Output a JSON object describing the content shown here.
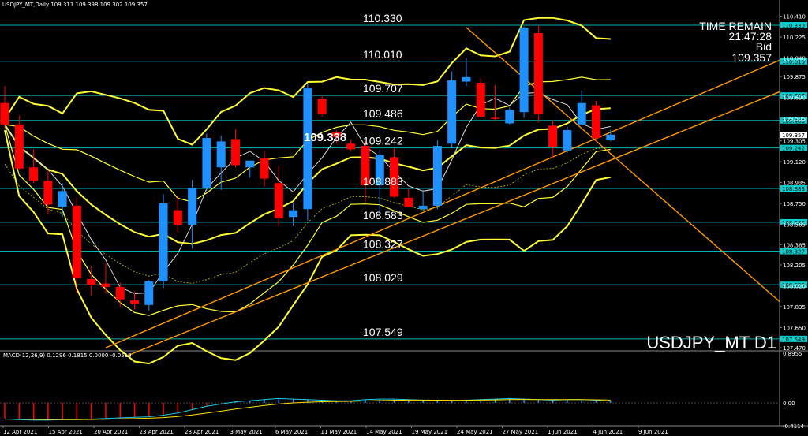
{
  "header": {
    "symbol_info": "USDJPY_MT,Daily  109.311 109.398 109.302 109.357",
    "macd_info": "MACD(12,26,9) 0.1296 0.1815 0.0000 -0.0519"
  },
  "overlay": {
    "time_remain_label": "TIME REMAIN",
    "time_remain": "21:47:28",
    "bid_label": "Bid",
    "bid": "109.357",
    "watermark": "USDJPY_MT D1",
    "marker_price": "109.338"
  },
  "chart_data": {
    "type": "candlestick",
    "price_axis": [
      "110.410",
      "110.225",
      "110.040",
      "109.875",
      "109.690",
      "109.505",
      "109.305",
      "109.120",
      "108.935",
      "108.750",
      "108.565",
      "108.385",
      "108.205",
      "108.020",
      "107.835",
      "107.650",
      "107.470"
    ],
    "ylim": [
      107.45,
      110.47
    ],
    "macd_axis": [
      "0.8955",
      "0.00",
      "-0.4114"
    ],
    "macd_ylim": [
      -0.4114,
      0.8955
    ],
    "dates": [
      "12 Apr 2021",
      "15 Apr 2021",
      "20 Apr 2021",
      "23 Apr 2021",
      "28 Apr 2021",
      "3 May 2021",
      "6 May 2021",
      "11 May 2021",
      "14 May 2021",
      "19 May 2021",
      "24 May 2021",
      "27 May 2021",
      "1 Jun 2021",
      "4 Jun 2021",
      "9 Jun 2021"
    ],
    "horizontal_levels": [
      {
        "value": 110.33,
        "label": "110.330",
        "tag": "110.330"
      },
      {
        "value": 110.01,
        "label": "110.010",
        "tag": "110.010"
      },
      {
        "value": 109.707,
        "label": "109.707",
        "tag": "109.707"
      },
      {
        "value": 109.486,
        "label": "109.486",
        "tag": "109.486"
      },
      {
        "value": 109.242,
        "label": "109.242",
        "tag": "109.242"
      },
      {
        "value": 108.883,
        "label": "108.883",
        "tag": "108.883"
      },
      {
        "value": 108.583,
        "label": "108.583",
        "tag": "108.583"
      },
      {
        "value": 108.327,
        "label": "108.327",
        "tag": "108.327"
      },
      {
        "value": 108.029,
        "label": "108.029",
        "tag": "108.029"
      },
      {
        "value": 107.549,
        "label": "107.549",
        "tag": "107.549"
      }
    ],
    "current_price_tag": "109.357",
    "candles": [
      {
        "o": 109.64,
        "h": 109.79,
        "l": 109.42,
        "c": 109.45
      },
      {
        "o": 109.45,
        "h": 109.53,
        "l": 109.05,
        "c": 109.06
      },
      {
        "o": 109.07,
        "h": 109.23,
        "l": 108.93,
        "c": 108.95
      },
      {
        "o": 108.95,
        "h": 109.04,
        "l": 108.65,
        "c": 108.74
      },
      {
        "o": 108.72,
        "h": 108.93,
        "l": 108.63,
        "c": 108.86
      },
      {
        "o": 108.73,
        "h": 108.8,
        "l": 107.95,
        "c": 108.09
      },
      {
        "o": 108.08,
        "h": 108.19,
        "l": 107.93,
        "c": 108.03
      },
      {
        "o": 108.04,
        "h": 108.22,
        "l": 107.95,
        "c": 108.01
      },
      {
        "o": 108.01,
        "h": 108.05,
        "l": 107.83,
        "c": 107.9
      },
      {
        "o": 107.89,
        "h": 107.97,
        "l": 107.81,
        "c": 107.86
      },
      {
        "o": 107.85,
        "h": 108.07,
        "l": 107.8,
        "c": 108.06
      },
      {
        "o": 108.06,
        "h": 108.83,
        "l": 108.0,
        "c": 108.75
      },
      {
        "o": 108.69,
        "h": 108.82,
        "l": 108.49,
        "c": 108.56
      },
      {
        "o": 108.56,
        "h": 108.96,
        "l": 108.35,
        "c": 108.89
      },
      {
        "o": 108.89,
        "h": 109.37,
        "l": 108.86,
        "c": 109.33
      },
      {
        "o": 109.07,
        "h": 109.35,
        "l": 108.87,
        "c": 109.3
      },
      {
        "o": 109.32,
        "h": 109.41,
        "l": 109.07,
        "c": 109.09
      },
      {
        "o": 109.07,
        "h": 109.13,
        "l": 108.98,
        "c": 109.13
      },
      {
        "o": 109.15,
        "h": 109.21,
        "l": 108.9,
        "c": 108.97
      },
      {
        "o": 108.93,
        "h": 109.08,
        "l": 108.55,
        "c": 108.62
      },
      {
        "o": 108.63,
        "h": 108.75,
        "l": 108.55,
        "c": 108.69
      },
      {
        "o": 108.7,
        "h": 109.81,
        "l": 108.6,
        "c": 109.77
      },
      {
        "o": 109.68,
        "h": 109.71,
        "l": 109.52,
        "c": 109.54
      },
      {
        "o": 109.38,
        "h": 109.4,
        "l": 109.28,
        "c": 109.34
      },
      {
        "o": 109.28,
        "h": 109.32,
        "l": 109.21,
        "c": 109.23
      },
      {
        "o": 109.26,
        "h": 109.3,
        "l": 108.76,
        "c": 108.91
      },
      {
        "o": 108.91,
        "h": 109.23,
        "l": 108.65,
        "c": 109.18
      },
      {
        "o": 109.16,
        "h": 109.24,
        "l": 108.8,
        "c": 108.81
      },
      {
        "o": 108.8,
        "h": 108.88,
        "l": 108.72,
        "c": 108.72
      },
      {
        "o": 108.7,
        "h": 108.87,
        "l": 108.68,
        "c": 108.73
      },
      {
        "o": 108.73,
        "h": 109.31,
        "l": 108.7,
        "c": 109.26
      },
      {
        "o": 109.28,
        "h": 109.92,
        "l": 109.24,
        "c": 109.84
      },
      {
        "o": 109.83,
        "h": 110.04,
        "l": 109.79,
        "c": 109.87
      },
      {
        "o": 109.82,
        "h": 109.86,
        "l": 109.51,
        "c": 109.52
      },
      {
        "o": 109.51,
        "h": 109.8,
        "l": 109.48,
        "c": 109.5
      },
      {
        "o": 109.46,
        "h": 109.6,
        "l": 109.45,
        "c": 109.58
      },
      {
        "o": 109.56,
        "h": 110.32,
        "l": 109.51,
        "c": 110.31
      },
      {
        "o": 110.26,
        "h": 110.33,
        "l": 109.47,
        "c": 109.54
      },
      {
        "o": 109.44,
        "h": 109.49,
        "l": 109.15,
        "c": 109.25
      },
      {
        "o": 109.22,
        "h": 109.43,
        "l": 109.2,
        "c": 109.4
      },
      {
        "o": 109.45,
        "h": 109.75,
        "l": 109.44,
        "c": 109.64
      },
      {
        "o": 109.62,
        "h": 109.66,
        "l": 109.3,
        "c": 109.33
      },
      {
        "o": 109.31,
        "h": 109.4,
        "l": 109.3,
        "c": 109.36
      }
    ],
    "macd_histogram": [
      -0.29,
      -0.3,
      -0.31,
      -0.31,
      -0.3,
      -0.3,
      -0.29,
      -0.28,
      -0.27,
      -0.26,
      -0.25,
      -0.22,
      -0.18,
      -0.12,
      -0.06,
      -0.02,
      0.02,
      0.04,
      0.06,
      0.08,
      0.07,
      0.06,
      0.05,
      0.04,
      0.04,
      0.06,
      0.07,
      0.07,
      0.06,
      0.05,
      0.05,
      0.04,
      0.05,
      0.06,
      0.07,
      0.08,
      0.07,
      0.06,
      0.05,
      0.06,
      0.06,
      0.05,
      0.03
    ]
  },
  "colors": {
    "background": "#000000",
    "bull": "#1e90ff",
    "bear": "#ff0000",
    "level_line": "#00b3b3",
    "band": "#ffff33",
    "trend": "#ff9900",
    "ma_white": "#d8d8d8",
    "macd_main": "#1ec8e6",
    "macd_signal": "#ffe000",
    "tag_bg": "#00d0d0"
  }
}
